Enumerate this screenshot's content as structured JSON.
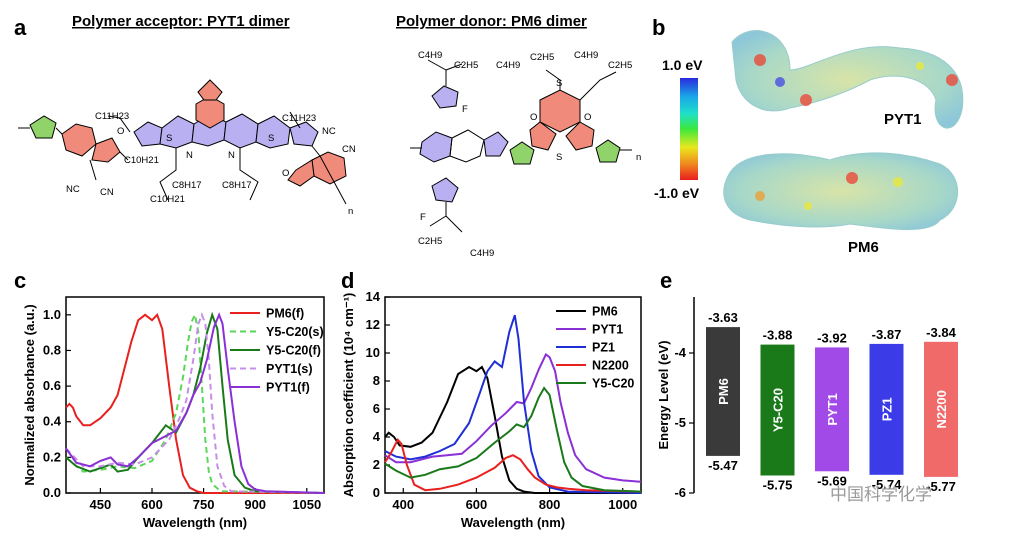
{
  "panels": {
    "a": "a",
    "b": "b",
    "c": "c",
    "d": "d",
    "e": "e"
  },
  "panel_a": {
    "acceptor_title": "Polymer acceptor: PYT1 dimer",
    "donor_title": "Polymer donor: PM6 dimer",
    "acceptor_labels": [
      "C11H23",
      "O",
      "C10H21",
      "N",
      "S",
      "C8H17",
      "C10H21",
      "N",
      "S",
      "C8H17",
      "C11H23",
      "NC",
      "CN",
      "NC",
      "CN",
      "O",
      "n"
    ],
    "donor_labels": [
      "C4H9",
      "C2H5",
      "F",
      "C4H9",
      "C2H5",
      "C4H9",
      "C2H5",
      "O",
      "O",
      "S",
      "S",
      "F",
      "C2H5",
      "C4H9",
      "n"
    ]
  },
  "panel_b": {
    "colorbar_top": "1.0 eV",
    "colorbar_bottom": "-1.0 eV",
    "label_top": "PYT1",
    "label_bottom": "PM6"
  },
  "chart_data": [
    {
      "type": "line",
      "panel": "c",
      "xlabel": "Wavelength (nm)",
      "ylabel": "Normalized absorbance (a.u.)",
      "xlim": [
        350,
        1100
      ],
      "ylim": [
        0,
        1.1
      ],
      "xticks": [
        450,
        600,
        750,
        900,
        1050
      ],
      "yticks": [
        0.0,
        0.2,
        0.4,
        0.6,
        0.8,
        1.0
      ],
      "legend_position": "top-right",
      "series": [
        {
          "name": "PM6(f)",
          "color": "#e8201e",
          "dash": "solid",
          "x": [
            350,
            360,
            370,
            380,
            400,
            420,
            450,
            480,
            500,
            520,
            540,
            560,
            580,
            600,
            615,
            630,
            650,
            670,
            690,
            710,
            730,
            750,
            800,
            1100
          ],
          "y": [
            0.48,
            0.5,
            0.48,
            0.43,
            0.38,
            0.38,
            0.42,
            0.48,
            0.55,
            0.7,
            0.85,
            0.97,
            1.0,
            0.97,
            1.0,
            0.92,
            0.6,
            0.3,
            0.1,
            0.03,
            0.01,
            0.0,
            0.0,
            0.0
          ]
        },
        {
          "name": "Y5-C20(s)",
          "color": "#5bd65b",
          "dash": "dash",
          "x": [
            350,
            400,
            450,
            500,
            550,
            600,
            640,
            670,
            690,
            705,
            715,
            725,
            735,
            745,
            755,
            765,
            775,
            800,
            1100
          ],
          "y": [
            0.2,
            0.12,
            0.13,
            0.15,
            0.14,
            0.18,
            0.3,
            0.45,
            0.65,
            0.85,
            0.96,
            1.0,
            0.9,
            0.6,
            0.3,
            0.12,
            0.05,
            0.01,
            0.0
          ]
        },
        {
          "name": "Y5-C20(f)",
          "color": "#1a7a1a",
          "dash": "solid",
          "x": [
            350,
            380,
            420,
            450,
            480,
            500,
            530,
            560,
            600,
            640,
            670,
            700,
            720,
            740,
            760,
            775,
            790,
            805,
            820,
            840,
            870,
            900,
            1100
          ],
          "y": [
            0.2,
            0.15,
            0.12,
            0.14,
            0.16,
            0.12,
            0.13,
            0.2,
            0.28,
            0.38,
            0.34,
            0.45,
            0.55,
            0.7,
            0.9,
            1.0,
            0.92,
            0.6,
            0.3,
            0.1,
            0.03,
            0.01,
            0.0
          ]
        },
        {
          "name": "PYT1(s)",
          "color": "#c58ee8",
          "dash": "dash",
          "x": [
            350,
            400,
            450,
            500,
            550,
            600,
            650,
            680,
            700,
            720,
            735,
            745,
            755,
            765,
            775,
            790,
            810,
            830,
            1100
          ],
          "y": [
            0.25,
            0.15,
            0.15,
            0.17,
            0.16,
            0.2,
            0.3,
            0.42,
            0.52,
            0.75,
            0.95,
            1.0,
            0.95,
            0.75,
            0.45,
            0.15,
            0.04,
            0.01,
            0.0
          ]
        },
        {
          "name": "PYT1(f)",
          "color": "#8b2fd6",
          "dash": "solid",
          "x": [
            350,
            380,
            420,
            450,
            480,
            500,
            530,
            560,
            600,
            640,
            670,
            700,
            720,
            740,
            760,
            780,
            795,
            805,
            820,
            840,
            860,
            880,
            900,
            930,
            1100
          ],
          "y": [
            0.25,
            0.17,
            0.15,
            0.18,
            0.2,
            0.16,
            0.15,
            0.2,
            0.28,
            0.32,
            0.35,
            0.45,
            0.55,
            0.62,
            0.75,
            0.93,
            1.0,
            0.95,
            0.7,
            0.4,
            0.15,
            0.05,
            0.02,
            0.01,
            0.0
          ]
        }
      ]
    },
    {
      "type": "line",
      "panel": "d",
      "xlabel": "Wavelength (nm)",
      "ylabel": "Absorption coefficient (10⁴ cm⁻¹)",
      "xlim": [
        350,
        1050
      ],
      "ylim": [
        0,
        14
      ],
      "xticks": [
        400,
        600,
        800,
        1000
      ],
      "yticks": [
        0,
        2,
        4,
        6,
        8,
        10,
        12,
        14
      ],
      "legend_position": "top-right",
      "series": [
        {
          "name": "PM6",
          "color": "#000000",
          "dash": "solid",
          "x": [
            350,
            360,
            375,
            390,
            420,
            450,
            480,
            520,
            550,
            580,
            600,
            615,
            630,
            650,
            670,
            690,
            710,
            730,
            760,
            800,
            1050
          ],
          "y": [
            4.0,
            4.3,
            4.0,
            3.4,
            3.3,
            3.6,
            4.3,
            6.5,
            8.5,
            9.0,
            8.7,
            9.0,
            8.2,
            5.5,
            2.6,
            0.9,
            0.3,
            0.1,
            0.0,
            0.0,
            0.0
          ]
        },
        {
          "name": "PYT1",
          "color": "#8b2fd6",
          "dash": "solid",
          "x": [
            350,
            380,
            420,
            450,
            480,
            520,
            560,
            600,
            640,
            680,
            710,
            730,
            750,
            770,
            790,
            800,
            815,
            830,
            850,
            870,
            900,
            950,
            1000,
            1050
          ],
          "y": [
            2.7,
            2.2,
            2.2,
            2.4,
            2.6,
            2.7,
            2.8,
            3.7,
            4.8,
            5.7,
            6.5,
            6.4,
            7.5,
            8.8,
            9.9,
            9.7,
            8.7,
            6.5,
            4.3,
            2.7,
            1.7,
            1.1,
            0.9,
            0.8
          ]
        },
        {
          "name": "PZ1",
          "color": "#1f2fd6",
          "dash": "solid",
          "x": [
            350,
            380,
            420,
            460,
            500,
            540,
            580,
            610,
            630,
            650,
            670,
            690,
            705,
            715,
            730,
            750,
            770,
            800,
            850,
            1050
          ],
          "y": [
            3.0,
            2.6,
            2.4,
            2.6,
            3.0,
            3.5,
            5.0,
            7.2,
            8.7,
            9.4,
            9.0,
            11.5,
            12.7,
            11.0,
            6.5,
            3.0,
            1.2,
            0.4,
            0.1,
            0.0
          ]
        },
        {
          "name": "N2200",
          "color": "#e8201e",
          "dash": "solid",
          "x": [
            350,
            365,
            385,
            395,
            410,
            430,
            460,
            500,
            550,
            600,
            650,
            680,
            700,
            720,
            740,
            760,
            790,
            820,
            850,
            900,
            1050
          ],
          "y": [
            2.2,
            2.8,
            3.8,
            3.5,
            2.0,
            0.6,
            0.2,
            0.3,
            0.6,
            1.1,
            1.8,
            2.5,
            2.7,
            2.4,
            1.7,
            1.1,
            0.6,
            0.4,
            0.3,
            0.2,
            0.1
          ]
        },
        {
          "name": "Y5-C20",
          "color": "#1a7a1a",
          "dash": "solid",
          "x": [
            350,
            380,
            420,
            460,
            500,
            550,
            600,
            650,
            690,
            710,
            730,
            750,
            770,
            785,
            800,
            820,
            840,
            860,
            890,
            950,
            1050
          ],
          "y": [
            2.1,
            1.6,
            1.1,
            1.3,
            1.7,
            1.9,
            2.5,
            3.6,
            4.4,
            4.9,
            4.7,
            5.5,
            6.8,
            7.5,
            7.0,
            4.5,
            2.2,
            1.1,
            0.5,
            0.2,
            0.1
          ]
        }
      ]
    },
    {
      "type": "bar",
      "panel": "e",
      "ylabel": "Energy Level (eV)",
      "ylim": [
        -6.0,
        -3.2
      ],
      "yticks": [
        -6,
        -5,
        -4
      ],
      "categories": [
        "PM6",
        "Y5-C20",
        "PYT1",
        "PZ1",
        "N2200"
      ],
      "homo": [
        -5.47,
        -5.75,
        -5.69,
        -5.74,
        -5.77
      ],
      "lumo": [
        -3.63,
        -3.88,
        -3.92,
        -3.87,
        -3.84
      ],
      "homo_labels": [
        "-5.47",
        "-5.75",
        "-5.69",
        "-5.74",
        "-5.77"
      ],
      "lumo_labels": [
        "-3.63",
        "-3.88",
        "-3.92",
        "-3.87",
        "-3.84"
      ],
      "colors": [
        "#3a3a3a",
        "#1a7a1a",
        "#a24ae8",
        "#3b3be8",
        "#f06a6a"
      ]
    }
  ],
  "watermark": "中国科学化学"
}
